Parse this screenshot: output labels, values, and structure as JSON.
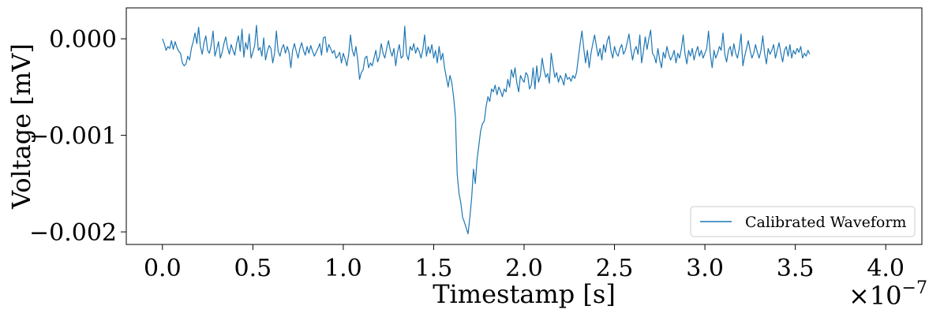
{
  "chart_data": {
    "type": "line",
    "title": "",
    "xlabel": "Timestamp [s]",
    "ylabel": "Voltage [mV]",
    "x_offset_label": "×10",
    "x_offset_exponent": "−7",
    "xlim": [
      -0.2,
      4.2
    ],
    "ylim": [
      -0.00213,
      0.00032
    ],
    "x_ticks": [
      0.0,
      0.5,
      1.0,
      1.5,
      2.0,
      2.5,
      3.0,
      3.5,
      4.0
    ],
    "x_tick_labels": [
      "0.0",
      "0.5",
      "1.0",
      "1.5",
      "2.0",
      "2.5",
      "3.0",
      "3.5",
      "4.0"
    ],
    "y_ticks": [
      0.0,
      -0.001,
      -0.002
    ],
    "y_tick_labels": [
      "0.000",
      "−0.001",
      "−0.002"
    ],
    "grid": false,
    "legend_position": "bottom-right",
    "color": "#1f77b4",
    "series": [
      {
        "name": "Calibrated Waveform",
        "x_start": 0.0,
        "x_step": 0.01,
        "values": [
          0.0,
          -5e-05,
          -0.00012,
          -8e-05,
          -0.0001,
          -2e-05,
          -0.00011,
          -3e-05,
          -9e-05,
          -0.00013,
          -0.00015,
          -0.00025,
          -0.00028,
          -0.00026,
          -0.00018,
          -0.00022,
          -0.0001,
          -3e-05,
          6e-05,
          -5e-05,
          0.00012,
          -8e-05,
          -0.00016,
          -4e-05,
          3e-05,
          -0.00012,
          -0.00015,
          -6e-05,
          8e-05,
          -0.00018,
          -0.00011,
          -3e-05,
          -0.0002,
          -0.00014,
          -5e-05,
          2e-05,
          -9e-05,
          -0.00016,
          -6e-05,
          -0.00012,
          -0.00017,
          -5e-05,
          3e-05,
          -0.00013,
          0.0001,
          -0.00019,
          -4e-05,
          -0.00011,
          5e-05,
          -0.0002,
          -0.00014,
          -7e-05,
          0.00014,
          -0.00012,
          -9e-05,
          -0.00018,
          1e-05,
          -0.00022,
          -0.00013,
          -7e-05,
          -0.0001,
          -0.00025,
          -0.00015,
          8e-05,
          -0.00013,
          -0.00018,
          -0.0001,
          -6e-05,
          -0.00015,
          -8e-05,
          -0.00014,
          -0.0003,
          -0.00012,
          -5e-05,
          -0.00013,
          -0.0002,
          -0.0001,
          -4e-05,
          -0.00012,
          -0.00017,
          -8e-05,
          -0.00015,
          -7e-05,
          -0.00013,
          -0.00018,
          -0.00014,
          -0.0001,
          -5e-05,
          -0.00017,
          1e-05,
          2e-05,
          -0.00014,
          -6e-05,
          -0.0001,
          -0.00015,
          -0.00012,
          -0.0002,
          -0.00018,
          -0.00014,
          -0.00025,
          -0.00015,
          -0.00021,
          -0.00028,
          -0.00016,
          4e-05,
          -0.00012,
          -0.00018,
          -8e-05,
          -0.00022,
          -0.00042,
          -0.00035,
          -0.00032,
          -0.0002,
          -0.00018,
          -0.0003,
          -0.00025,
          -0.00028,
          -0.0002,
          -0.00012,
          -0.00024,
          -0.00018,
          -5e-05,
          -0.00015,
          -0.0002,
          -0.0001,
          -2e-05,
          -0.00012,
          -0.00018,
          -0.0001,
          -0.00028,
          -0.00014,
          -6e-05,
          -0.0002,
          -0.00018,
          0.00013,
          -0.00016,
          -0.00022,
          -8e-05,
          -0.00012,
          -5e-05,
          -0.00015,
          -9e-05,
          -0.00013,
          -0.0002,
          -0.00011,
          4e-05,
          -0.00018,
          -8e-05,
          -0.00015,
          -6e-05,
          -0.0002,
          -0.00012,
          -0.00025,
          -8e-05,
          -0.00022,
          -0.00015,
          -0.0003,
          -0.0004,
          -0.0005,
          -0.00038,
          -0.00045,
          -0.0006,
          -0.0008,
          -0.0014,
          -0.0016,
          -0.0017,
          -0.00185,
          -0.0019,
          -0.00196,
          -0.00202,
          -0.00185,
          -0.00165,
          -0.00135,
          -0.0015,
          -0.00125,
          -0.0011,
          -0.00095,
          -0.00088,
          -0.00085,
          -0.0007,
          -0.0006,
          -0.00065,
          -0.00052,
          -0.00055,
          -0.00048,
          -0.00058,
          -0.0005,
          -0.00054,
          -0.0006,
          -0.00052,
          -0.00055,
          -0.00042,
          -0.0005,
          -0.00032,
          -0.0004,
          -0.0003,
          -0.00046,
          -0.00055,
          -0.00038,
          -0.00042,
          -0.00045,
          -0.00035,
          -0.00038,
          -0.00052,
          -0.00048,
          -0.0003,
          -0.00052,
          -0.00028,
          -0.00045,
          -0.00038,
          -0.0002,
          -0.00032,
          -0.0004,
          -0.00036,
          -0.00046,
          -0.00015,
          -0.00028,
          -0.0004,
          -0.00035,
          -0.00045,
          -0.00038,
          -0.00042,
          -0.00048,
          -0.00036,
          -0.00042,
          -0.0004,
          -0.00044,
          -0.00038,
          -0.00041,
          -0.00035,
          -0.0002,
          -5e-05,
          8e-05,
          -0.0001,
          -0.00025,
          -0.00012,
          -0.0003,
          -0.00015,
          -5e-05,
          4e-05,
          -8e-05,
          -0.00018,
          -0.0001,
          -0.00022,
          -6e-05,
          -0.00014,
          -2e-05,
          3e-05,
          -0.00012,
          -0.0002,
          -8e-05,
          -0.00015,
          -0.00018,
          -0.0001,
          -6e-05,
          -0.00016,
          -0.00012,
          -4e-05,
          5e-05,
          -0.0001,
          -0.00022,
          -0.00012,
          -8e-05,
          -0.00016,
          4e-05,
          -0.00025,
          -0.00013,
          2e-05,
          -0.00011,
          0.0,
          9e-05,
          -0.00015,
          -0.00018,
          -0.00025,
          -0.0001,
          -0.00022,
          -0.0003,
          -0.00014,
          -0.0002,
          -8e-05,
          -0.00016,
          -0.00022,
          -0.00018,
          -0.00012,
          -0.00025,
          -0.00015,
          -0.0002,
          -0.0001,
          4e-05,
          -0.00016,
          -0.00026,
          -0.00012,
          -0.00018,
          -0.0001,
          -0.00022,
          -0.00014,
          -8e-05,
          -0.00018,
          -0.00012,
          -0.0002,
          -0.00015,
          -0.0001,
          8e-05,
          -0.00016,
          -0.0003,
          -0.00012,
          -0.0002,
          -0.00015,
          -8e-05,
          -0.00012,
          6e-05,
          -0.00016,
          -0.00024,
          -0.00012,
          -8e-05,
          -0.00018,
          -5e-05,
          -0.00015,
          -0.0002,
          -0.0001,
          5e-05,
          -0.00028,
          -0.00018,
          -0.0001,
          -2e-05,
          -0.00012,
          -0.0002,
          -0.00015,
          -6e-05,
          -0.00014,
          -0.0002,
          -0.00012,
          3e-05,
          -0.00015,
          -0.00026,
          -0.0001,
          -0.00016,
          -0.00012,
          -6e-05,
          -0.0002,
          -0.00012,
          -4e-05,
          -0.00015,
          -0.00024,
          -0.00012,
          -8e-05,
          -0.00018,
          -6e-05,
          -0.0002,
          -0.00012,
          -0.00016,
          -0.0001,
          -0.00014,
          -8e-05,
          -0.0002,
          -0.00015,
          -0.00018,
          -0.00012,
          -0.00016
        ]
      }
    ]
  }
}
